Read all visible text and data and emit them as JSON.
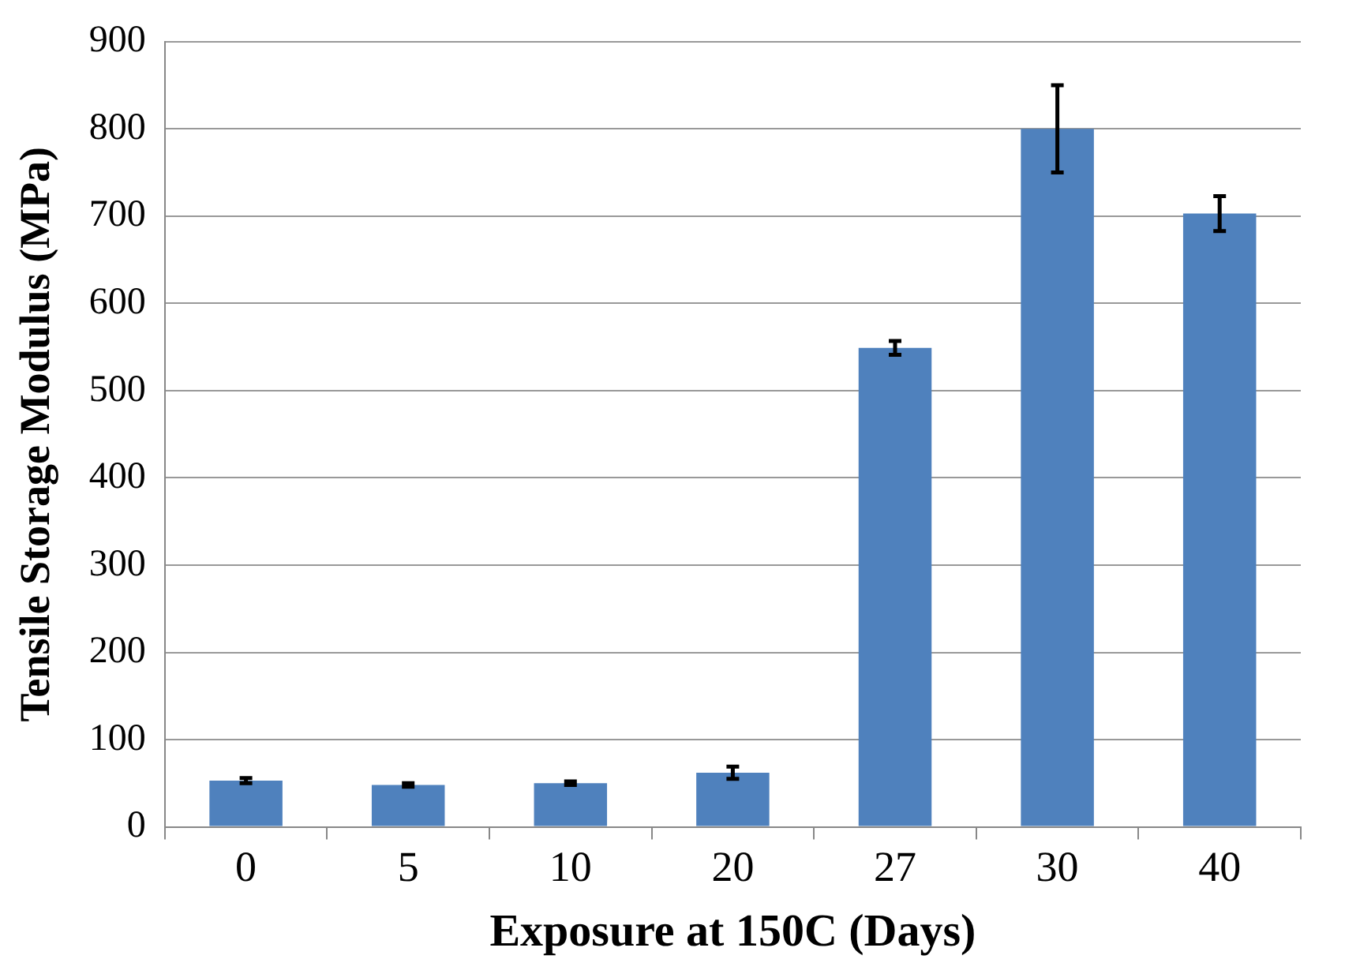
{
  "chart_data": {
    "type": "bar",
    "xlabel": "Exposure at 150C (Days)",
    "ylabel": "Tensile Storage Modulus (MPa)",
    "categories": [
      "0",
      "5",
      "10",
      "20",
      "27",
      "30",
      "40"
    ],
    "values": [
      53,
      48,
      50,
      62,
      549,
      800,
      703
    ],
    "errors": [
      3,
      2,
      2,
      7,
      8,
      50,
      20
    ],
    "color": "#4f81bd",
    "ylim": [
      0,
      900
    ],
    "yticks": [
      0,
      100,
      200,
      300,
      400,
      500,
      600,
      700,
      800,
      900
    ],
    "grid": "y"
  }
}
